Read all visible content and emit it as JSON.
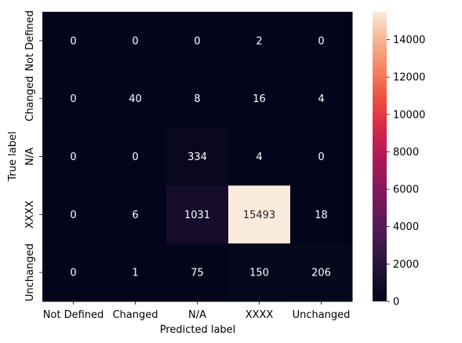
{
  "chart_data": {
    "type": "heatmap",
    "title": "",
    "xlabel": "Predicted label",
    "ylabel": "True label",
    "x_categories": [
      "Not Defined",
      "Changed",
      "N/A",
      "XXXX",
      "Unchanged"
    ],
    "y_categories": [
      "Not Defined",
      "Changed",
      "N/A",
      "XXXX",
      "Unchanged"
    ],
    "values": [
      [
        0,
        0,
        0,
        2,
        0
      ],
      [
        0,
        40,
        8,
        16,
        4
      ],
      [
        0,
        0,
        334,
        4,
        0
      ],
      [
        0,
        6,
        1031,
        15493,
        18
      ],
      [
        0,
        1,
        75,
        150,
        206
      ]
    ],
    "colorbar": {
      "colormap": "rocket",
      "vmin": 0,
      "vmax": 15493,
      "ticks": [
        0,
        2000,
        4000,
        6000,
        8000,
        10000,
        12000,
        14000
      ]
    }
  }
}
